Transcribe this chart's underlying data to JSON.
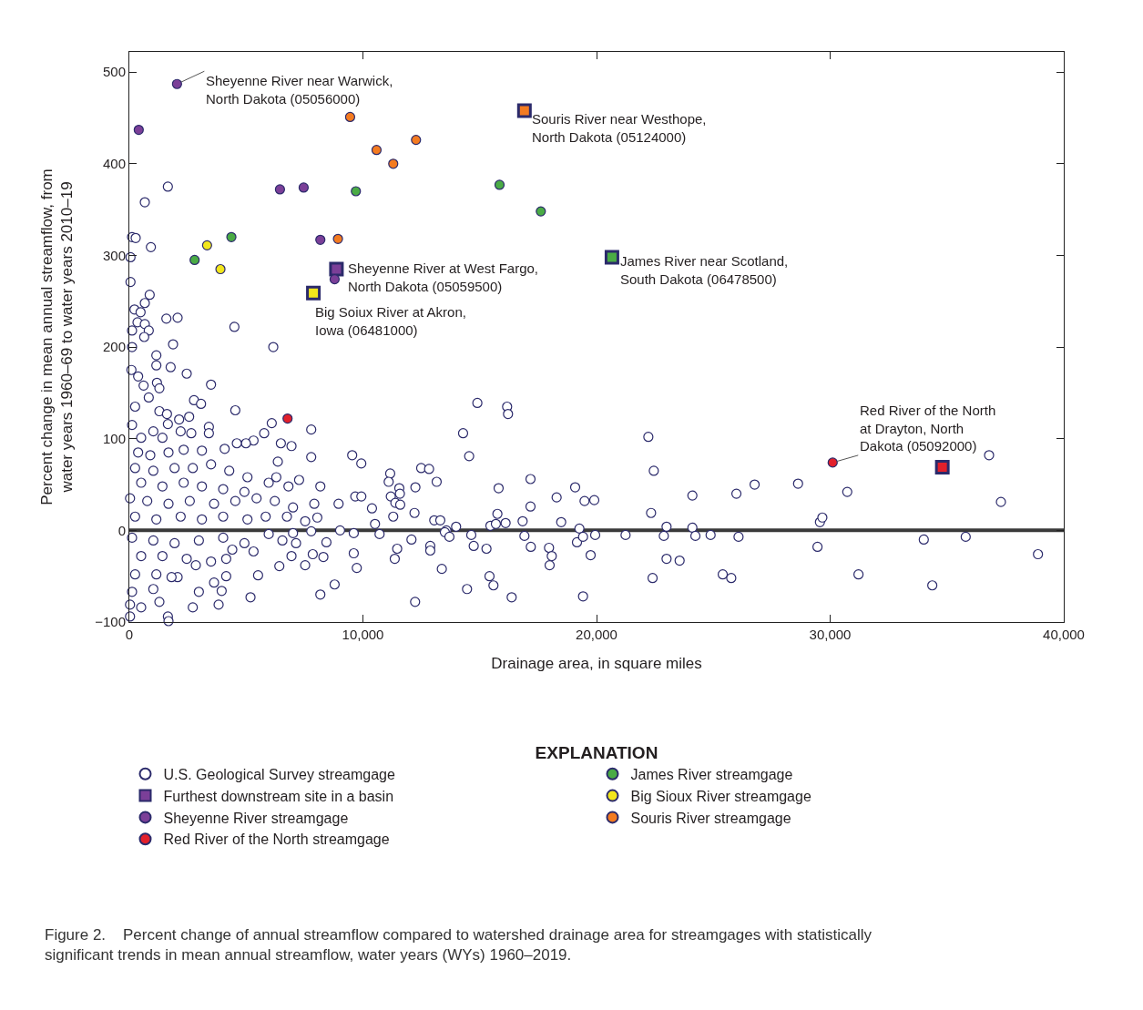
{
  "chart_data": {
    "type": "scatter",
    "xlabel": "Drainage area, in square miles",
    "ylabel": "Percent change in mean annual streamflow, from\nwater years 1960–69 to water years 2010–19",
    "legend_title": "EXPLANATION",
    "legend": "bottom",
    "grid": false,
    "xlim": [
      0,
      40000
    ],
    "xticks": [
      0,
      {
        "value": 10000,
        "label": "10,000"
      },
      {
        "value": 20000,
        "label": "20,000"
      },
      {
        "value": 30000,
        "label": "30,000"
      },
      {
        "value": 40000,
        "label": "40,000"
      }
    ],
    "ylim": [
      -100,
      522
    ],
    "yticks": [
      {
        "value": -100,
        "label": "−100"
      },
      0,
      100,
      200,
      300,
      400,
      500
    ],
    "ref_lines": [
      {
        "axis": "y",
        "value": 0,
        "color": "#3a3a3a"
      }
    ],
    "series": [
      {
        "name": "U.S. Geological Survey streamgage",
        "color": "#ffffff",
        "marker": "circle",
        "x": [
          1650,
          663,
          117,
          273,
          923,
          50,
          50,
          871,
          663,
          221,
          481,
          351,
          663,
          832,
          117,
          637,
          1586,
          2067,
          4498,
          6162,
          1872,
          117,
          1157,
          1157,
          1768,
          90,
          377,
          2457,
          1183,
          1287,
          611,
          3497,
          2769,
          3069,
          4537,
          247,
          832,
          1287,
          1612,
          2132,
          2561,
          1651,
          3406,
          3406,
          6097,
          7786,
          5772,
          5317,
          4992,
          4602,
          6487,
          6942,
          4082,
          7786,
          9540,
          9930,
          6357,
          3107,
          2652,
          2197,
          117,
          507,
          1027,
          1417,
          377,
          897,
          1677,
          2327,
          247,
          1027,
          1937,
          2717,
          3497,
          4277,
          5057,
          507,
          1417,
          2327,
          3107,
          4017,
          4927,
          5967,
          6292,
          6812,
          7267,
          8177,
          30,
          767,
          1677,
          2587,
          3627,
          4537,
          5447,
          6227,
          7007,
          7917,
          8957,
          9672,
          9932,
          10387,
          247,
          1157,
          2197,
          3107,
          4017,
          5057,
          5837,
          6747,
          7527,
          8047,
          10517,
          117,
          1027,
          1937,
          2977,
          4017,
          4927,
          5967,
          7007,
          7787,
          9022,
          9607,
          10712,
          507,
          1417,
          2457,
          3497,
          4407,
          5317,
          6552,
          7137,
          7852,
          8437,
          9607,
          247,
          1157,
          2067,
          2847,
          4147,
          6942,
          7527,
          8307,
          6422,
          9737,
          117,
          1027,
          1807,
          4147,
          5512,
          3627,
          2977,
          3952,
          30,
          507,
          1287,
          2717,
          3822,
          5187,
          8177,
          8788,
          30,
          1651,
          1677,
          14898,
          16172,
          16211,
          14287,
          14547,
          22217,
          22451,
          11167,
          11102,
          11557,
          11583,
          11193,
          11388,
          11596,
          11297,
          12246,
          12493,
          12831,
          13156,
          12207,
          13052,
          13312,
          13572,
          13988,
          15808,
          17173,
          17173,
          15756,
          15457,
          15691,
          16107,
          16836,
          18486,
          18291,
          19084,
          19487,
          19903,
          19266,
          24102,
          22334,
          22997,
          24102,
          12077,
          11466,
          11362,
          12883,
          12883,
          13507,
          13702,
          14638,
          14742,
          15288,
          13377,
          15418,
          15587,
          14456,
          16367,
          12233,
          16913,
          17186,
          17966,
          18083,
          17992,
          19162,
          19422,
          19942,
          19747,
          19422,
          21242,
          22880,
          22997,
          23556,
          22399,
          24232,
          24882,
          25402,
          25987,
          26767,
          28626,
          30732,
          29562,
          29666,
          26078,
          25766,
          29458,
          31213,
          34008,
          34372,
          35802,
          36803,
          37310,
          38896
        ],
        "values": [
          375,
          358,
          320,
          319,
          309,
          298,
          271,
          257,
          248,
          241,
          238,
          227,
          225,
          218,
          218,
          211,
          231,
          232,
          222,
          200,
          203,
          200,
          191,
          180,
          178,
          175,
          168,
          171,
          161,
          155,
          158,
          159,
          142,
          138,
          131,
          135,
          145,
          130,
          127,
          121,
          124,
          116,
          113,
          106,
          117,
          110,
          106,
          98,
          95,
          95,
          95,
          92,
          89,
          80,
          82,
          73,
          75,
          87,
          106,
          108,
          115,
          101,
          108,
          101,
          85,
          82,
          85,
          88,
          68,
          65,
          68,
          68,
          72,
          65,
          58,
          52,
          48,
          52,
          48,
          45,
          42,
          52,
          58,
          48,
          55,
          48,
          35,
          32,
          29,
          32,
          29,
          32,
          35,
          32,
          25,
          29,
          29,
          37,
          37,
          24,
          15,
          12,
          15,
          12,
          15,
          12,
          15,
          15,
          10,
          14,
          7,
          -8,
          -11,
          -14,
          -11,
          -8,
          -14,
          -4,
          -3,
          -1,
          0,
          -3,
          -4,
          -28,
          -28,
          -31,
          -34,
          -21,
          -23,
          -11,
          -14,
          -26,
          -13,
          -25,
          -48,
          -48,
          -51,
          -38,
          -31,
          -28,
          -38,
          -29,
          -39,
          -41,
          -67,
          -64,
          -51,
          -50,
          -49,
          -57,
          -67,
          -66,
          -81,
          -84,
          -78,
          -84,
          -81,
          -73,
          -70,
          -59,
          -94,
          -94,
          -99,
          139,
          135,
          127,
          106,
          81,
          102,
          65,
          62,
          53,
          46,
          40,
          37,
          30,
          28,
          15,
          47,
          68,
          67,
          53,
          19,
          11,
          11,
          0,
          4,
          46,
          56,
          26,
          18,
          5,
          7,
          8,
          10,
          9,
          36,
          47,
          32,
          33,
          2,
          38,
          19,
          4,
          3,
          -10,
          -20,
          -31,
          -17,
          -22,
          -2,
          -7,
          -5,
          -17,
          -20,
          -42,
          -50,
          -60,
          -64,
          -73,
          -78,
          -6,
          -18,
          -19,
          -28,
          -38,
          -13,
          -7,
          -5,
          -27,
          -72,
          -5,
          -6,
          -31,
          -33,
          -52,
          -6,
          -5,
          -48,
          40,
          50,
          51,
          42,
          9,
          14,
          -7,
          -52,
          -18,
          -48,
          -10,
          -60,
          -7,
          82,
          31,
          -26
        ]
      },
      {
        "name": "James River streamgage",
        "color": "#4aab45",
        "marker": "circle",
        "x": [
          9698,
          15847,
          17615,
          4368,
          2795
        ],
        "values": [
          370,
          377,
          348,
          320,
          295
        ]
      },
      {
        "name": "Furthest downstream site in a basin",
        "color": "#2b2a6b",
        "marker": "square",
        "colors": [
          "#7b3f98",
          "#f47b20",
          "#4aab45",
          "#f2e61c",
          "#e2202b"
        ],
        "x": [
          8866,
          16913,
          20660,
          7878,
          34801
        ],
        "values": [
          285,
          458,
          298,
          259,
          69
        ]
      },
      {
        "name": "Big Sioux River streamgage",
        "color": "#f2e61c",
        "marker": "circle",
        "x": [
          3328,
          3900
        ],
        "values": [
          311,
          285
        ]
      },
      {
        "name": "Sheyenne River streamgage",
        "color": "#7b3f98",
        "marker": "circle",
        "x": [
          2041,
          403,
          6448,
          7462,
          8177,
          8788
        ],
        "values": [
          487,
          437,
          372,
          374,
          317,
          274
        ]
      },
      {
        "name": "Souris River streamgage",
        "color": "#f47b20",
        "marker": "circle",
        "x": [
          9451,
          10582,
          12272,
          11297,
          8931
        ],
        "values": [
          451,
          415,
          426,
          400,
          318
        ]
      },
      {
        "name": "Red River of the North streamgage",
        "color": "#e2202b",
        "marker": "circle",
        "x": [
          6773,
          30108
        ],
        "values": [
          122,
          74
        ]
      }
    ],
    "annotations": [
      {
        "text": "Sheyenne River near Warwick,\nNorth Dakota (05056000)",
        "x": 2041,
        "y": 487
      },
      {
        "text": "Souris River near Westhope,\nNorth Dakota (05124000)",
        "x": 16913,
        "y": 458
      },
      {
        "text": "Sheyenne River at West Fargo,\nNorth Dakota (05059500)",
        "x": 8866,
        "y": 285
      },
      {
        "text": "Big Soiux River at Akron,\nIowa (06481000)",
        "x": 7878,
        "y": 259
      },
      {
        "text": "James River near Scotland,\nSouth Dakota (06478500)",
        "x": 20660,
        "y": 298
      },
      {
        "text": "Red River of the North\nat Drayton, North\nDakota (05092000)",
        "x": 30108,
        "y": 74
      },
      "Figure 2.    Percent change of annual streamflow compared to watershed drainage area for streamgages with statistically\nsignificant trends in mean annual streamflow, water years (WYs) 1960–2019."
    ]
  }
}
